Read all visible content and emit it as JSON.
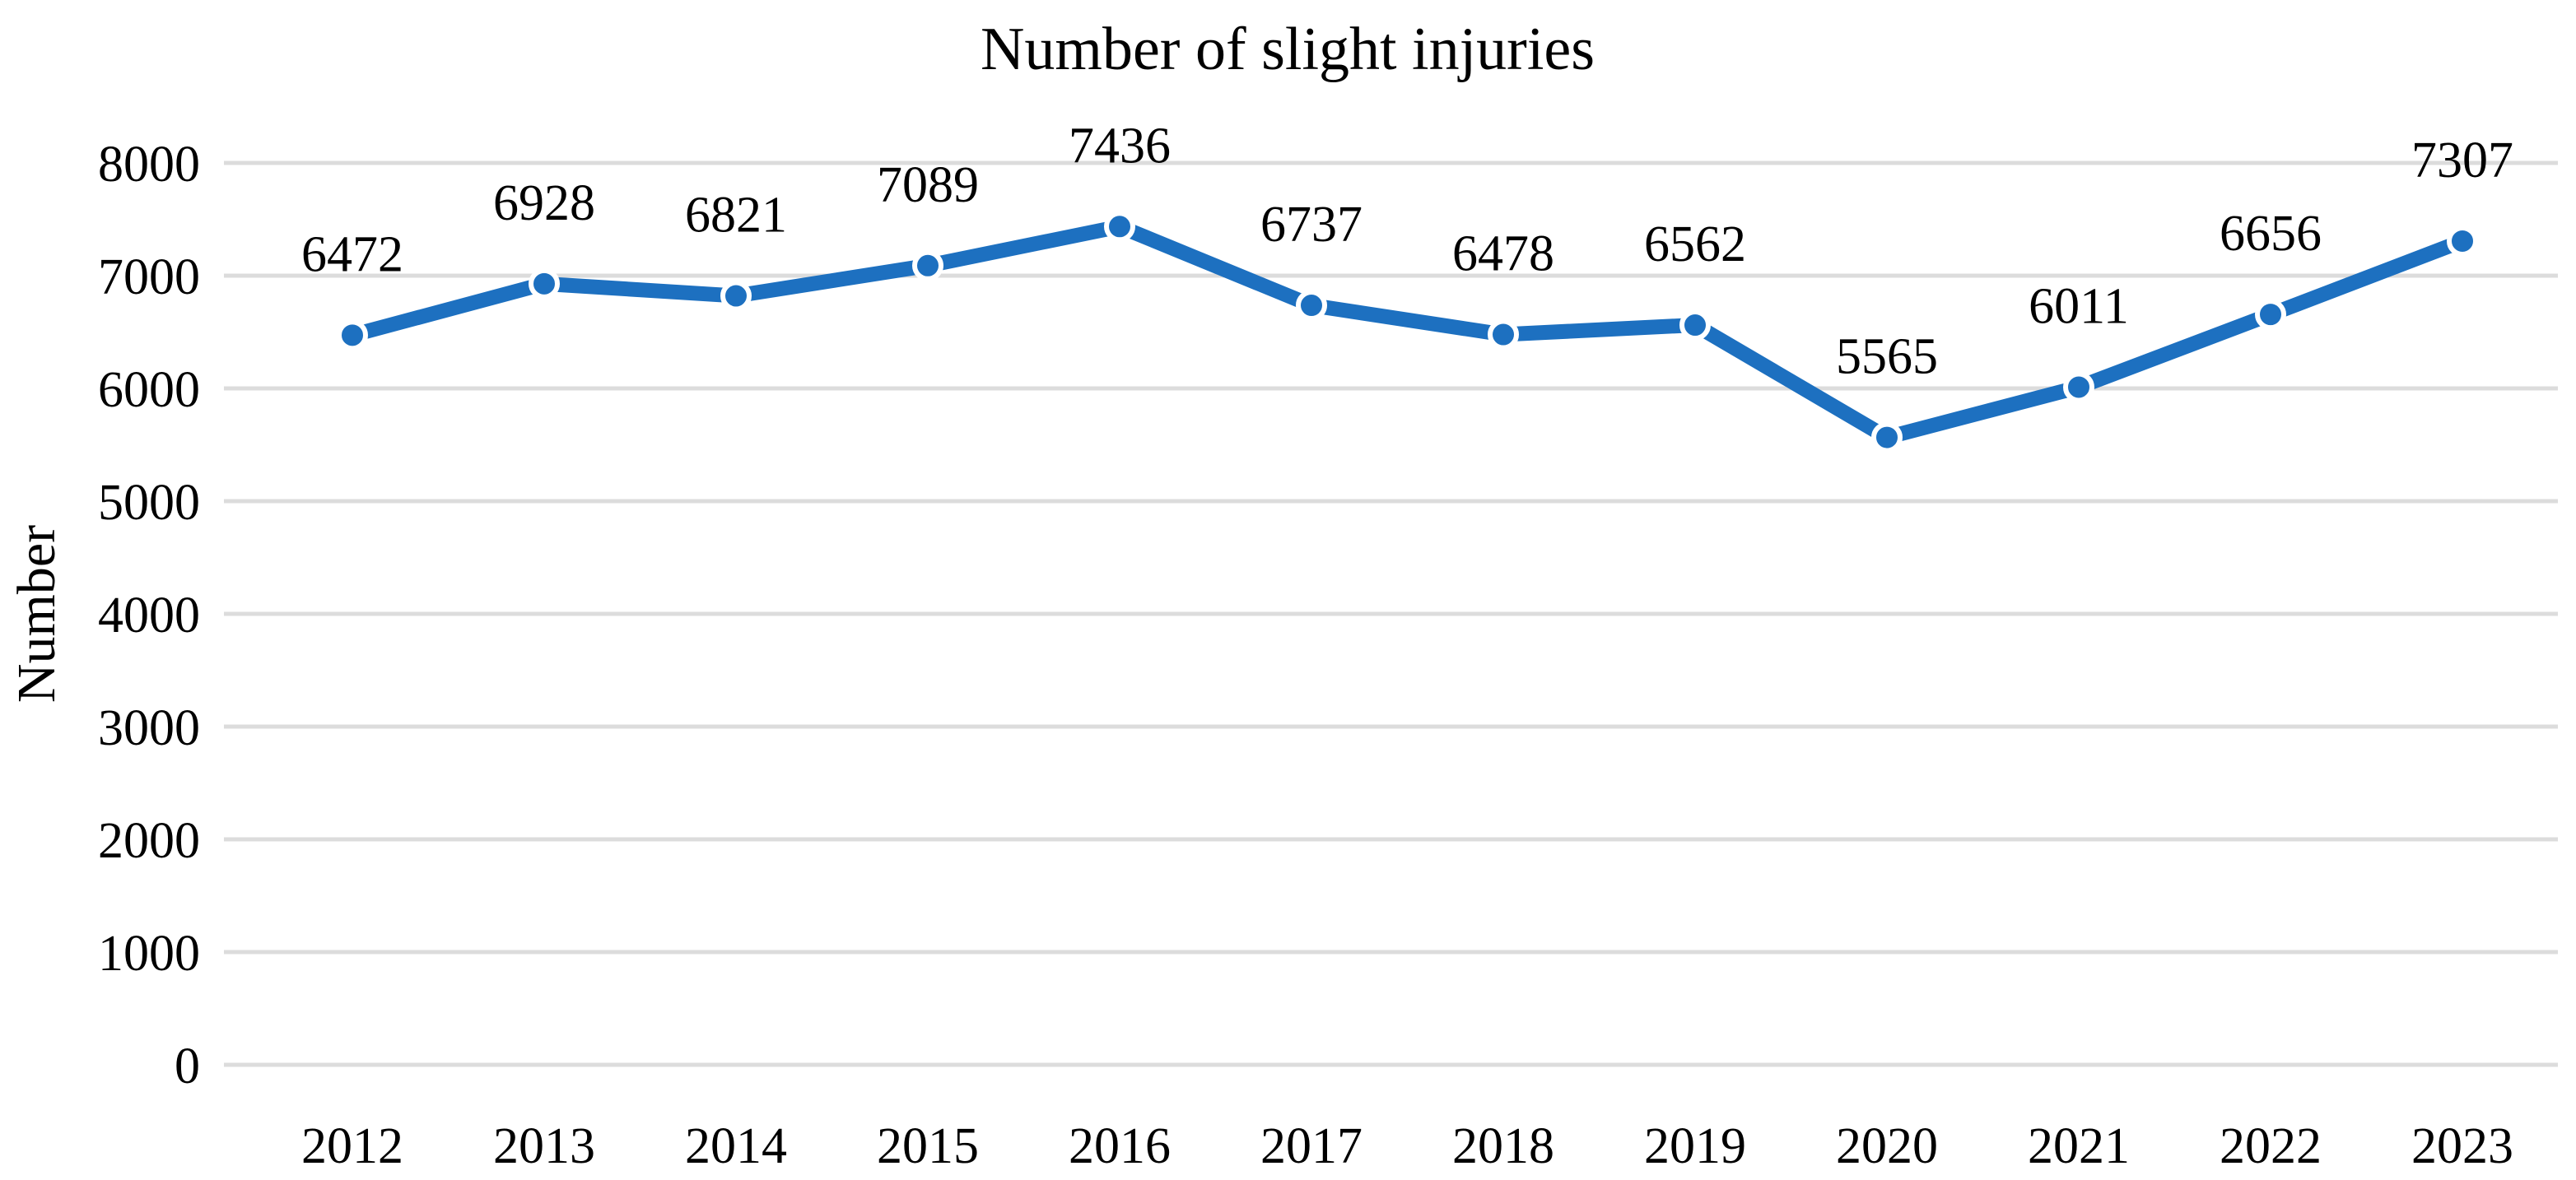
{
  "chart_data": {
    "type": "line",
    "title": "Number of slight injuries",
    "xlabel": "",
    "ylabel": "Number",
    "categories": [
      "2012",
      "2013",
      "2014",
      "2015",
      "2016",
      "2017",
      "2018",
      "2019",
      "2020",
      "2021",
      "2022",
      "2023"
    ],
    "series": [
      {
        "name": "Number of slight injuries",
        "values": [
          6472,
          6928,
          6821,
          7089,
          7436,
          6737,
          6478,
          6562,
          5565,
          6011,
          6656,
          7307
        ]
      }
    ],
    "data_labels": [
      "6472",
      "6928",
      "6821",
      "7089",
      "7436",
      "6737",
      "6478",
      "6562",
      "5565",
      "6011",
      "6656",
      "7307"
    ],
    "yticks": [
      "0",
      "1000",
      "2000",
      "3000",
      "4000",
      "5000",
      "6000",
      "7000",
      "8000"
    ],
    "ylim": [
      0,
      8000
    ],
    "grid": "horizontal",
    "legend": "none",
    "colors": {
      "line": "#1D70C0",
      "marker_fill": "#1D70C0",
      "marker_outline": "#FFFFFF",
      "gridline": "#DCDCDC",
      "text": "#000000",
      "background": "#FFFFFF"
    }
  }
}
